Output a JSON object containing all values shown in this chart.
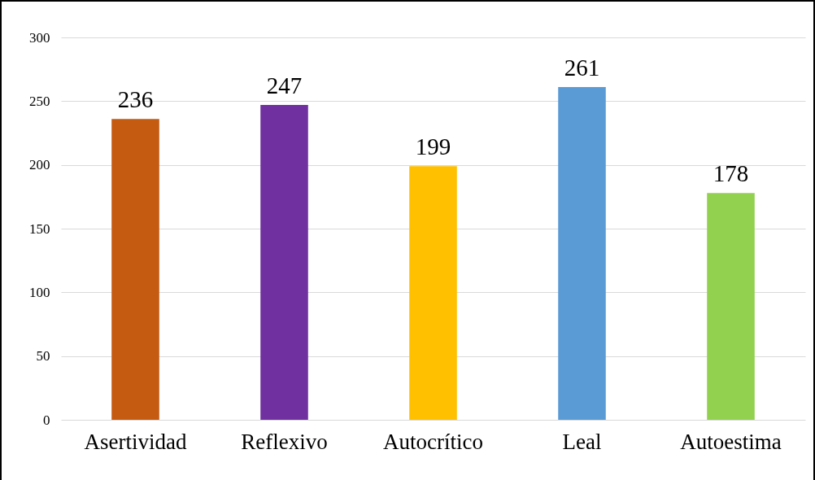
{
  "chart_data": {
    "type": "bar",
    "categories": [
      "Asertividad",
      "Reflexivo",
      "Autocrítico",
      "Leal",
      "Autoestima"
    ],
    "values": [
      236,
      247,
      199,
      261,
      178
    ],
    "colors": [
      "#c55a11",
      "#7030a0",
      "#ffc000",
      "#5b9bd5",
      "#92d050"
    ],
    "ylim": [
      0,
      300
    ],
    "yticks": [
      0,
      50,
      100,
      150,
      200,
      250,
      300
    ],
    "grid": "y",
    "data_labels": true,
    "legend": false
  }
}
